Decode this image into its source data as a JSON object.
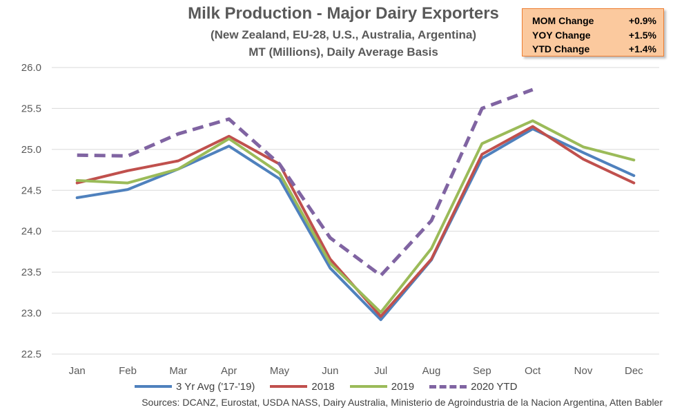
{
  "chart_data": {
    "type": "line",
    "title": "Milk Production - Major Dairy Exporters",
    "subtitle_lines": [
      "(New Zealand, EU-28, U.S., Australia, Argentina)",
      "MT (Millions), Daily Average Basis"
    ],
    "categories": [
      "Jan",
      "Feb",
      "Mar",
      "Apr",
      "May",
      "Jun",
      "Jul",
      "Aug",
      "Sep",
      "Oct",
      "Nov",
      "Dec"
    ],
    "y_ticks": [
      "26.0",
      "25.5",
      "25.0",
      "24.5",
      "24.0",
      "23.5",
      "23.0",
      "22.5"
    ],
    "ylim": [
      22.5,
      26.0
    ],
    "grid": true,
    "legend_position": "bottom",
    "series": [
      {
        "name": "3 Yr Avg ('17-'19)",
        "color": "#4f81bd",
        "dashed": false,
        "values": [
          24.41,
          24.51,
          24.76,
          25.04,
          24.64,
          23.55,
          22.92,
          23.65,
          24.89,
          25.25,
          24.96,
          24.68
        ]
      },
      {
        "name": "2018",
        "color": "#c0504d",
        "dashed": false,
        "values": [
          24.59,
          24.74,
          24.86,
          25.16,
          24.82,
          23.66,
          22.96,
          23.66,
          24.94,
          25.28,
          24.88,
          24.59
        ]
      },
      {
        "name": "2019",
        "color": "#9bbb59",
        "dashed": false,
        "values": [
          24.62,
          24.59,
          24.76,
          25.13,
          24.71,
          23.61,
          23.01,
          23.79,
          25.07,
          25.35,
          25.03,
          24.87
        ]
      },
      {
        "name": "2020 YTD",
        "color": "#8064a2",
        "dashed": true,
        "values": [
          24.93,
          24.92,
          25.19,
          25.37,
          24.82,
          23.92,
          23.46,
          24.13,
          25.5,
          25.73,
          null,
          null
        ]
      }
    ]
  },
  "stats_box": {
    "rows": [
      {
        "label": "MOM Change",
        "value": "+0.9%"
      },
      {
        "label": "YOY Change",
        "value": "+1.5%"
      },
      {
        "label": "YTD Change",
        "value": "+1.4%"
      }
    ]
  },
  "source_text": "Sources: DCANZ, Eurostat, USDA NASS, Dairy Australia, Ministerio de Agroindustria de la Nacion Argentina, Atten Babler"
}
